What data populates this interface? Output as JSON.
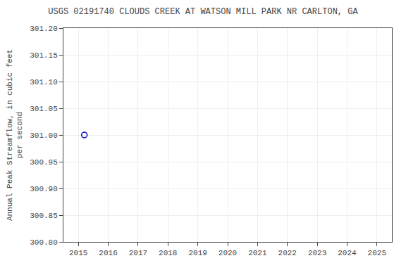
{
  "chart_data": {
    "type": "scatter",
    "title": "USGS 02191740 CLOUDS CREEK AT WATSON MILL PARK NR CARLTON, GA",
    "ylabel": "Annual Peak Streamflow, in cubic feet\nper second",
    "x": [
      2015.2
    ],
    "values": [
      301.0
    ],
    "color": "#0000cc",
    "marker": "circle-open",
    "xlim": [
      2014.5,
      2025.5
    ],
    "ylim": [
      300.8,
      301.2
    ],
    "xticks": [
      2015,
      2016,
      2017,
      2018,
      2019,
      2020,
      2021,
      2022,
      2023,
      2024,
      2025
    ],
    "yticks": [
      {
        "value": 300.8,
        "label": "300.80"
      },
      {
        "value": 300.85,
        "label": "300.85"
      },
      {
        "value": 300.9,
        "label": "300.90"
      },
      {
        "value": 300.95,
        "label": "300.95"
      },
      {
        "value": 301.0,
        "label": "301.00"
      },
      {
        "value": 301.05,
        "label": "301.05"
      },
      {
        "value": 301.1,
        "label": "301.10"
      },
      {
        "value": 301.15,
        "label": "301.15"
      },
      {
        "value": 301.2,
        "label": "301.20"
      }
    ],
    "grid": true
  }
}
